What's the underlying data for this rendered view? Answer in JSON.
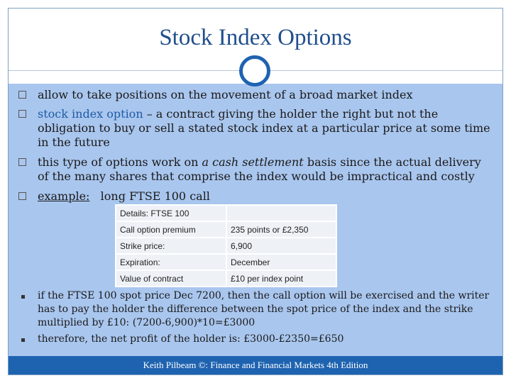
{
  "title": "Stock Index Options",
  "bullets": {
    "b1": "allow to take positions on the movement of a broad market index",
    "b2_term": "stock index option",
    "b2_rest": " – a contract giving the holder the right but not the obligation to buy or sell a stated stock index at a particular price at some time in the future",
    "b3_pre": "this type of options work on ",
    "b3_em": "a cash settlement",
    "b3_post": " basis since the actual delivery of the many shares that comprise the index would be impractical and costly",
    "b4_label": "example:",
    "b4_rest": "   long FTSE 100 call"
  },
  "details_table": {
    "rows": [
      [
        "Details: FTSE 100",
        ""
      ],
      [
        "Call option premium",
        "235 points or £2,350"
      ],
      [
        "Strike price:",
        "6,900"
      ],
      [
        "Expiration:",
        "December"
      ],
      [
        "Value of contract",
        "£10 per index point"
      ]
    ]
  },
  "subbullets": {
    "s1": "if the FTSE 100 spot price Dec 7200, then the call option will be exercised and the writer has to pay the holder the difference between the spot price of the index and the strike multiplied by £10: (7200-6,900)*10=£3000",
    "s2": "therefore, the net profit of the holder is: £3000-£2350=£650"
  },
  "footer": "Keith Pilbeam ©: Finance and Financial Markets 4th Edition",
  "colors": {
    "title": "#1f4e8c",
    "content_bg": "#a9c6ee",
    "accent": "#1e63b0"
  }
}
